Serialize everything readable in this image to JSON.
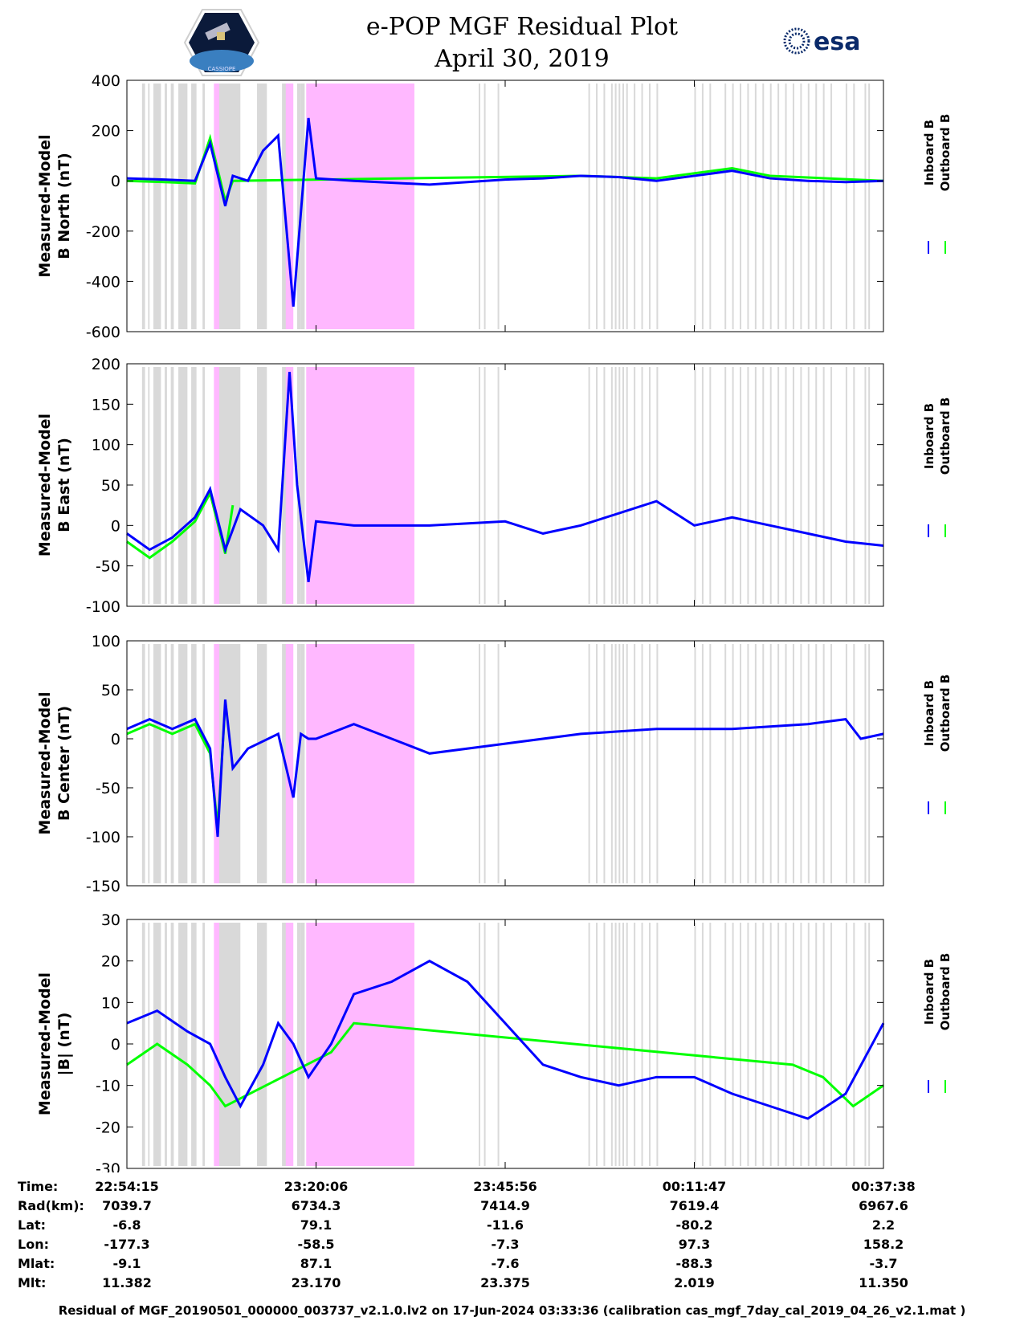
{
  "title": {
    "line1": "e-POP MGF Residual Plot",
    "line2": "April 30, 2019"
  },
  "logos": {
    "left": "cassiope-mission-logo",
    "left_text": "CASSIOPE",
    "right": "esa-logo",
    "right_text": "esa"
  },
  "colors": {
    "inboard": "#0000ff",
    "outboard": "#00ff00",
    "gap_gray": "#d9d9d9",
    "gap_pink": "#ffb8ff"
  },
  "chart_data": [
    {
      "type": "line",
      "ylabel_line1": "Measured-Model",
      "ylabel_line2": "B North (nT)",
      "ylim": [
        -600,
        400
      ],
      "yticks": [
        "400",
        "200",
        "0",
        "-200",
        "-400",
        "-600"
      ],
      "ytick_values": [
        400,
        200,
        0,
        -200,
        -400,
        -600
      ],
      "series": [
        {
          "name": "Inboard B",
          "x": [
            0,
            0.05,
            0.09,
            0.11,
            0.13,
            0.14,
            0.16,
            0.18,
            0.2,
            0.22,
            0.24,
            0.25,
            0.3,
            0.4,
            0.5,
            0.55,
            0.6,
            0.65,
            0.7,
            0.75,
            0.8,
            0.85,
            0.9,
            0.95,
            1.0
          ],
          "values": [
            10,
            5,
            0,
            150,
            -100,
            20,
            0,
            120,
            180,
            -500,
            250,
            10,
            0,
            -15,
            5,
            10,
            20,
            15,
            0,
            20,
            40,
            10,
            0,
            -5,
            0
          ]
        },
        {
          "name": "Outboard B",
          "x": [
            0,
            0.05,
            0.09,
            0.11,
            0.13,
            0.14,
            0.6,
            0.7,
            0.8,
            0.85,
            1.0
          ],
          "values": [
            0,
            -5,
            -10,
            170,
            -80,
            0,
            20,
            10,
            50,
            20,
            0
          ]
        }
      ]
    },
    {
      "type": "line",
      "ylabel_line1": "Measured-Model",
      "ylabel_line2": "B East (nT)",
      "ylim": [
        -100,
        200
      ],
      "yticks": [
        "200",
        "150",
        "100",
        "50",
        "0",
        "-50",
        "-100"
      ],
      "ytick_values": [
        200,
        150,
        100,
        50,
        0,
        -50,
        -100
      ],
      "series": [
        {
          "name": "Inboard B",
          "x": [
            0,
            0.03,
            0.06,
            0.09,
            0.11,
            0.13,
            0.15,
            0.18,
            0.2,
            0.215,
            0.225,
            0.24,
            0.25,
            0.3,
            0.4,
            0.5,
            0.55,
            0.6,
            0.7,
            0.75,
            0.8,
            0.85,
            0.9,
            0.95,
            1.0
          ],
          "values": [
            -10,
            -30,
            -15,
            10,
            45,
            -30,
            20,
            0,
            -30,
            190,
            50,
            -70,
            5,
            0,
            0,
            5,
            -10,
            0,
            30,
            0,
            10,
            0,
            -10,
            -20,
            -25
          ]
        },
        {
          "name": "Outboard B",
          "x": [
            0,
            0.03,
            0.06,
            0.09,
            0.11,
            0.13,
            0.14
          ],
          "values": [
            -20,
            -40,
            -20,
            5,
            40,
            -35,
            25
          ]
        }
      ]
    },
    {
      "type": "line",
      "ylabel_line1": "Measured-Model",
      "ylabel_line2": "B Center (nT)",
      "ylim": [
        -150,
        100
      ],
      "yticks": [
        "100",
        "50",
        "0",
        "-50",
        "-100",
        "-150"
      ],
      "ytick_values": [
        100,
        50,
        0,
        -50,
        -100,
        -150
      ],
      "series": [
        {
          "name": "Inboard B",
          "x": [
            0,
            0.03,
            0.06,
            0.09,
            0.11,
            0.12,
            0.13,
            0.14,
            0.16,
            0.2,
            0.22,
            0.23,
            0.24,
            0.25,
            0.3,
            0.35,
            0.4,
            0.5,
            0.6,
            0.7,
            0.8,
            0.9,
            0.95,
            0.97,
            1.0
          ],
          "values": [
            10,
            20,
            10,
            20,
            -10,
            -100,
            40,
            -30,
            -10,
            5,
            -60,
            5,
            0,
            0,
            15,
            0,
            -15,
            -5,
            5,
            10,
            10,
            15,
            20,
            0,
            5
          ]
        },
        {
          "name": "Outboard B",
          "x": [
            0,
            0.03,
            0.06,
            0.09,
            0.11,
            0.12,
            0.13
          ],
          "values": [
            5,
            15,
            5,
            15,
            -15,
            -90,
            35
          ]
        }
      ]
    },
    {
      "type": "line",
      "ylabel_line1": "Measured-Model",
      "ylabel_line2": "|B| (nT)",
      "ylim": [
        -30,
        30
      ],
      "yticks": [
        "30",
        "20",
        "10",
        "0",
        "-10",
        "-20",
        "-30"
      ],
      "ytick_values": [
        30,
        20,
        10,
        0,
        -10,
        -20,
        -30
      ],
      "series": [
        {
          "name": "Inboard B",
          "x": [
            0,
            0.04,
            0.08,
            0.11,
            0.13,
            0.15,
            0.18,
            0.2,
            0.22,
            0.24,
            0.27,
            0.3,
            0.35,
            0.4,
            0.45,
            0.5,
            0.55,
            0.6,
            0.65,
            0.7,
            0.75,
            0.8,
            0.85,
            0.9,
            0.95,
            1.0
          ],
          "values": [
            5,
            8,
            3,
            0,
            -8,
            -15,
            -5,
            5,
            0,
            -8,
            0,
            12,
            15,
            20,
            15,
            5,
            -5,
            -8,
            -10,
            -8,
            -8,
            -12,
            -15,
            -18,
            -12,
            5
          ]
        },
        {
          "name": "Outboard B",
          "x": [
            0,
            0.04,
            0.08,
            0.11,
            0.13,
            0.27,
            0.3,
            0.88,
            0.92,
            0.96,
            1.0
          ],
          "values": [
            -5,
            0,
            -5,
            -10,
            -15,
            -2,
            5,
            -5,
            -8,
            -15,
            -10
          ]
        }
      ]
    }
  ],
  "legend": {
    "inboard": "Inboard B",
    "outboard": "Outboard B"
  },
  "info_table": {
    "rows": [
      {
        "label": "Time:",
        "values": [
          "22:54:15",
          "23:20:06",
          "23:45:56",
          "00:11:47",
          "00:37:38"
        ]
      },
      {
        "label": "Rad(km):",
        "values": [
          "7039.7",
          "6734.3",
          "7414.9",
          "7619.4",
          "6967.6"
        ]
      },
      {
        "label": "Lat:",
        "values": [
          "-6.8",
          "79.1",
          "-11.6",
          "-80.2",
          "2.2"
        ]
      },
      {
        "label": "Lon:",
        "values": [
          "-177.3",
          "-58.5",
          "-7.3",
          "97.3",
          "158.2"
        ]
      },
      {
        "label": "Mlat:",
        "values": [
          "-9.1",
          "87.1",
          "-7.6",
          "-88.3",
          "-3.7"
        ]
      },
      {
        "label": "Mlt:",
        "values": [
          "11.382",
          "23.170",
          "23.375",
          "2.019",
          "11.350"
        ]
      }
    ]
  },
  "footer": "Residual of MGF_20190501_000000_003737_v2.1.0.lv2 on 17-Jun-2024 03:33:36 (calibration cas_mgf_7day_cal_2019_04_26_v2.1.mat )"
}
